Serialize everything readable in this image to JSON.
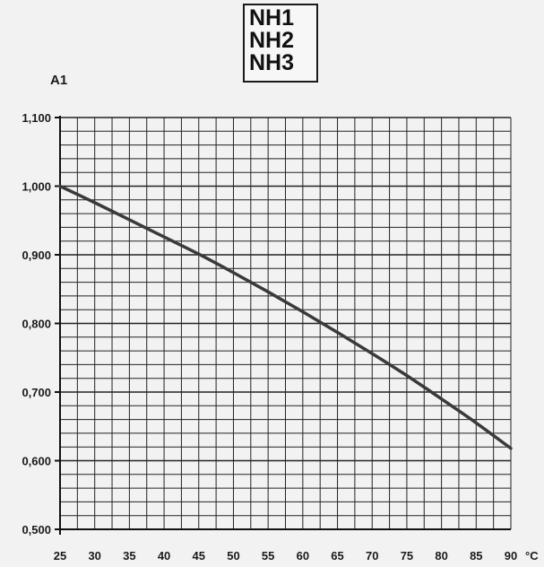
{
  "chart_data": {
    "type": "line",
    "title_lines": [
      "NH1",
      "NH2",
      "NH3"
    ],
    "ylabel": "A1",
    "x_unit": "°C",
    "x": [
      25,
      30,
      35,
      40,
      45,
      50,
      55,
      60,
      65,
      70,
      75,
      80,
      85,
      90
    ],
    "x_tick_labels": [
      "25",
      "30",
      "35",
      "40",
      "45",
      "50",
      "55",
      "60",
      "65",
      "70",
      "75",
      "80",
      "85",
      "90"
    ],
    "xlim": [
      25,
      90
    ],
    "y_tick_values": [
      0.5,
      0.6,
      0.7,
      0.8,
      0.9,
      1.0,
      1.1
    ],
    "y_tick_labels": [
      "0,500",
      "0,600",
      "0,700",
      "0,800",
      "0,900",
      "1,000",
      "1,100"
    ],
    "ylim": [
      0.5,
      1.1
    ],
    "grid": true,
    "series": [
      {
        "values": [
          1.0,
          0.976,
          0.951,
          0.926,
          0.901,
          0.874,
          0.846,
          0.817,
          0.787,
          0.756,
          0.724,
          0.69,
          0.655,
          0.618
        ]
      }
    ]
  }
}
